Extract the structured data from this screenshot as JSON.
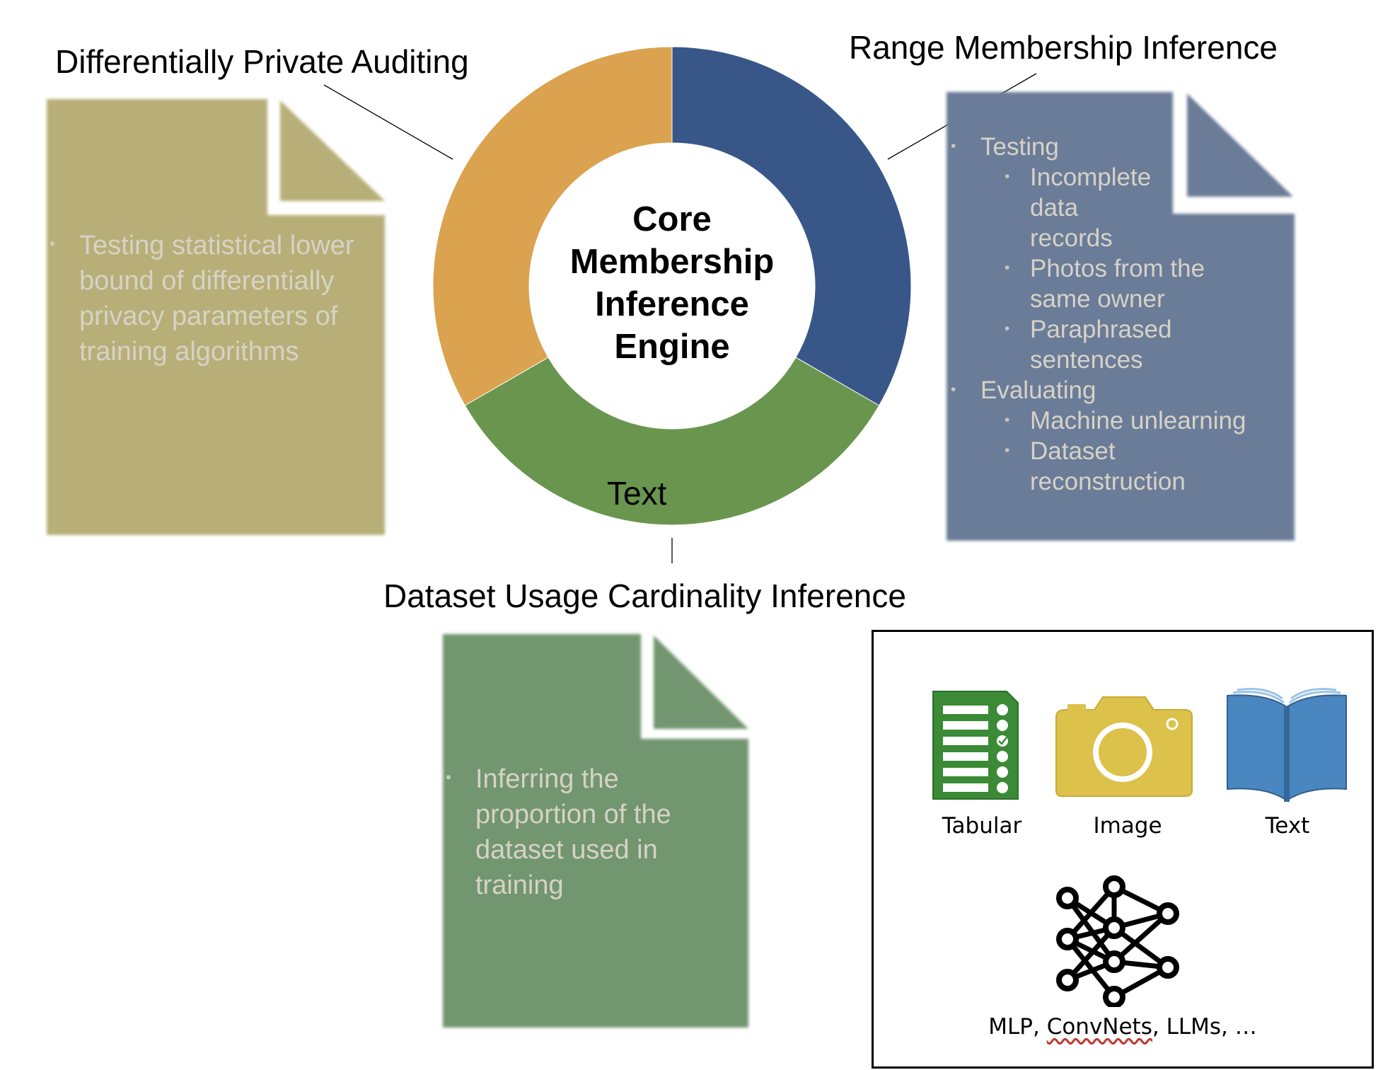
{
  "center": {
    "title_lines": [
      "Core",
      "Membership",
      "Inference",
      "Engine"
    ]
  },
  "segments": {
    "auditing": {
      "title": "Differentially Private Auditing",
      "color": "#dba24f",
      "doc_color": "#b8af78",
      "bullets": [
        "Testing statistical lower bound of differentially privacy parameters of training algorithms"
      ]
    },
    "range": {
      "title": "Range Membership Inference",
      "color": "#385788",
      "doc_color": "#6b7b98",
      "items": [
        {
          "label": "Testing",
          "sub": [
            "Incomplete data records",
            "Photos from the same owner",
            "Paraphrased sentences"
          ]
        },
        {
          "label": "Evaluating",
          "sub": [
            "Machine unlearning",
            "Dataset reconstruction"
          ]
        }
      ]
    },
    "cardinality": {
      "title": "Dataset Usage Cardinality Inference",
      "color": "#6a954f",
      "doc_color": "#729670",
      "segment_text": "Text",
      "bullets": [
        "Inferring the proportion of the dataset used in training"
      ]
    }
  },
  "data_types": {
    "items": [
      {
        "label": "Tabular",
        "icon": "spreadsheet-icon"
      },
      {
        "label": "Image",
        "icon": "camera-icon"
      },
      {
        "label": "Text",
        "icon": "book-icon"
      }
    ],
    "models_caption_prefix": "MLP, ",
    "models_caption_underlined": "ConvNets",
    "models_caption_suffix": ", LLMs, …"
  }
}
